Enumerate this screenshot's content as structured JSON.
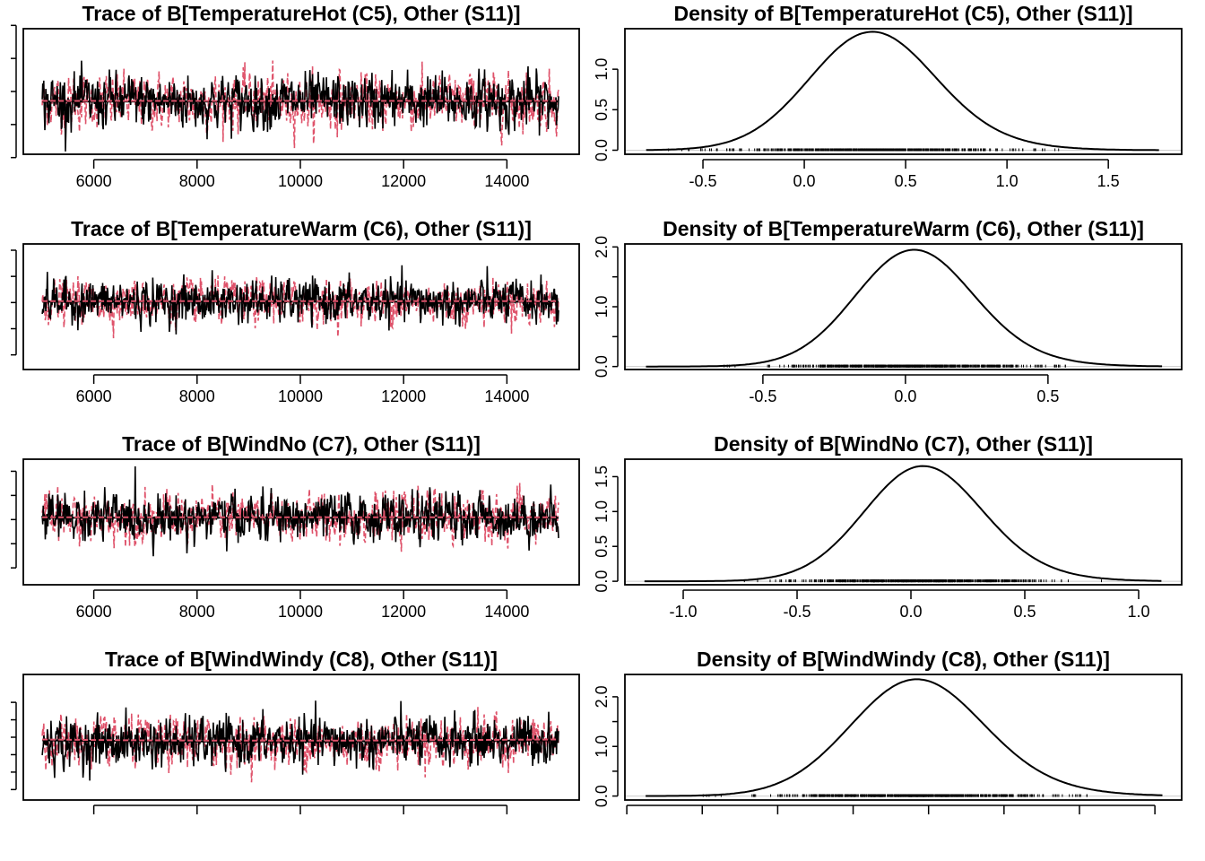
{
  "colors": {
    "chain1": "#000000",
    "chain2": "#DF536B"
  },
  "chart_data": [
    {
      "type": "line",
      "kind": "trace",
      "title": "Trace of B[TemperatureHot (C5), Other (S11)]",
      "xlim": [
        4635,
        15400
      ],
      "xticks": [
        6000,
        8000,
        10000,
        12000,
        14000
      ],
      "xtick_labels": [
        "6000",
        "8000",
        "10000",
        "12000",
        "14000"
      ],
      "ylim": [
        -0.45,
        1.45
      ],
      "yticks": [
        -0.5,
        0.0,
        0.5,
        1.0,
        1.5
      ],
      "iterations": [
        5001,
        15000
      ],
      "chains": 2,
      "mean": 0.35,
      "sd": 0.2,
      "trend": 0.0
    },
    {
      "type": "line",
      "kind": "density",
      "title": "Density of B[TemperatureHot (C5), Other (S11)]",
      "xlim": [
        -0.885,
        1.862
      ],
      "xticks": [
        -0.5,
        0.0,
        0.5,
        1.0,
        1.5
      ],
      "xtick_labels": [
        "-0.5",
        "0.0",
        "0.5",
        "1.0",
        "1.5"
      ],
      "ylim": [
        -0.05,
        1.5
      ],
      "yticks": [
        0.0,
        0.5,
        1.0
      ],
      "ytick_labels": [
        "0.0",
        "0.5",
        "1.0"
      ],
      "mode": 0.32,
      "sd": 0.3,
      "peak": 1.46,
      "range": [
        -0.78,
        1.75
      ]
    },
    {
      "type": "line",
      "kind": "trace",
      "title": "Trace of B[TemperatureWarm (C6), Other (S11)]",
      "xlim": [
        4635,
        15400
      ],
      "xticks": [
        6000,
        8000,
        10000,
        12000,
        14000
      ],
      "xtick_labels": [
        "6000",
        "8000",
        "10000",
        "12000",
        "14000"
      ],
      "ylim": [
        -1.28,
        1.12
      ],
      "yticks": [
        -1.0,
        -0.5,
        0.0,
        0.5,
        1.0
      ],
      "iterations": [
        5001,
        15000
      ],
      "chains": 2,
      "mean": 0.02,
      "sd": 0.2,
      "trend": 0.0
    },
    {
      "type": "line",
      "kind": "density",
      "title": "Density of B[TemperatureWarm (C6), Other (S11)]",
      "xlim": [
        -0.984,
        0.969
      ],
      "xticks": [
        -0.5,
        0.0,
        0.5
      ],
      "xtick_labels": [
        "-0.5",
        "0.0",
        "0.5"
      ],
      "ylim": [
        -0.05,
        2.05
      ],
      "yticks": [
        0.0,
        0.5,
        1.0,
        1.5,
        2.0
      ],
      "ytick_labels": [
        "0.0",
        "",
        "1.0",
        "",
        "2.0"
      ],
      "mode": 0.02,
      "sd": 0.2,
      "peak": 1.95,
      "range": [
        -0.91,
        0.9
      ]
    },
    {
      "type": "line",
      "kind": "trace",
      "title": "Trace of B[WindNo (C7), Other (S11)]",
      "xlim": [
        4635,
        15400
      ],
      "xticks": [
        6000,
        8000,
        10000,
        12000,
        14000
      ],
      "xtick_labels": [
        "6000",
        "8000",
        "10000",
        "12000",
        "14000"
      ],
      "ylim": [
        -1.35,
        1.25
      ],
      "yticks": [
        -1.0,
        -0.5,
        0.0,
        0.5,
        1.0
      ],
      "iterations": [
        5001,
        15000
      ],
      "chains": 2,
      "mean": 0.04,
      "sd": 0.24,
      "trend": 0.0
    },
    {
      "type": "line",
      "kind": "density",
      "title": "Density of B[WindNo (C7), Other (S11)]",
      "xlim": [
        -1.256,
        1.189
      ],
      "xticks": [
        -1.0,
        -0.5,
        0.0,
        0.5,
        1.0
      ],
      "xtick_labels": [
        "-1.0",
        "-0.5",
        "0.0",
        "0.5",
        "1.0"
      ],
      "ylim": [
        -0.05,
        1.75
      ],
      "yticks": [
        0.0,
        0.5,
        1.0,
        1.5
      ],
      "ytick_labels": [
        "0.0",
        "0.5",
        "1.0",
        "1.5"
      ],
      "mode": 0.04,
      "sd": 0.25,
      "peak": 1.65,
      "range": [
        -1.17,
        1.1
      ]
    },
    {
      "type": "line",
      "kind": "trace",
      "title": "Trace of B[WindWindy (C8), Other (S11)]",
      "xlim": [
        4635,
        15400
      ],
      "xticks": [
        6000,
        8000,
        10000,
        12000,
        14000
      ],
      "xtick_labels": [],
      "ylim": [
        -0.9,
        0.9
      ],
      "yticks": [
        -0.75,
        -0.5,
        -0.25,
        0.0,
        0.25,
        0.5
      ],
      "iterations": [
        5001,
        15000
      ],
      "chains": 2,
      "mean": -0.04,
      "sd": 0.17,
      "trend": 0.05
    },
    {
      "type": "line",
      "kind": "density",
      "title": "Density of B[WindWindy (C8), Other (S11)]",
      "xlim": [
        -0.805,
        0.671
      ],
      "xticks": [
        -0.8,
        -0.6,
        -0.4,
        -0.2,
        0.0,
        0.2,
        0.4,
        0.6
      ],
      "xtick_labels": [],
      "ylim": [
        -0.08,
        2.45
      ],
      "yticks": [
        0.0,
        0.5,
        1.0,
        1.5,
        2.0
      ],
      "ytick_labels": [
        "0.0",
        "",
        "1.0",
        "",
        "2.0"
      ],
      "mode": -0.04,
      "sd": 0.17,
      "peak": 2.35,
      "range": [
        -0.75,
        0.62
      ]
    }
  ]
}
